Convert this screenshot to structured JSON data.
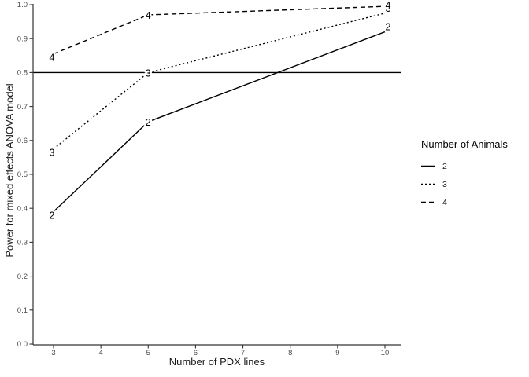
{
  "chart_data": {
    "type": "line",
    "title": "",
    "xlabel": "Number of PDX lines",
    "ylabel": "Power for mixed effects ANOVA model",
    "x_ticks": [
      3,
      4,
      5,
      6,
      7,
      8,
      9,
      10
    ],
    "y_ticks": [
      "0.0",
      "0.1",
      "0.2",
      "0.3",
      "0.4",
      "0.5",
      "0.6",
      "0.7",
      "0.8",
      "0.9",
      "1.0"
    ],
    "xlim": [
      3,
      10
    ],
    "ylim": [
      0.0,
      1.0
    ],
    "grid": false,
    "reference_line_y": 0.8,
    "legend": {
      "title": "Number of Animals",
      "position": "right",
      "entries": [
        {
          "label": "2",
          "style": "solid"
        },
        {
          "label": "3",
          "style": "dotted"
        },
        {
          "label": "4",
          "style": "dashed"
        }
      ]
    },
    "series": [
      {
        "name": "2",
        "style": "solid",
        "x": [
          3,
          5,
          10
        ],
        "y": [
          0.39,
          0.655,
          0.92
        ]
      },
      {
        "name": "3",
        "style": "dotted",
        "x": [
          3,
          5,
          10
        ],
        "y": [
          0.575,
          0.8,
          0.975
        ]
      },
      {
        "name": "4",
        "style": "dashed",
        "x": [
          3,
          5,
          10
        ],
        "y": [
          0.855,
          0.97,
          0.995
        ]
      }
    ],
    "point_labels_source": "series name"
  }
}
